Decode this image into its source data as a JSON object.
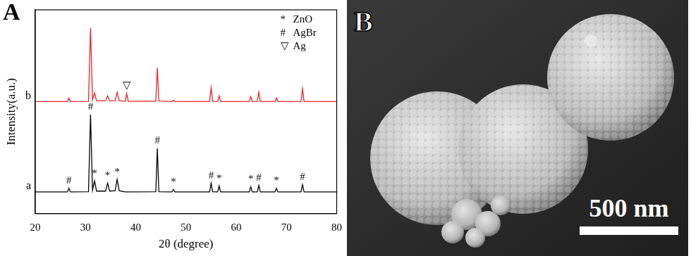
{
  "chart_data": {
    "type": "line",
    "panel_label": "A",
    "x_label": "2θ (degree)",
    "y_label": "Intensity(a.u.)",
    "x": [
      20,
      26.4,
      26.7,
      27.0,
      30.6,
      31.0,
      31.4,
      31.8,
      32.2,
      34.0,
      34.4,
      34.8,
      35.9,
      36.3,
      36.7,
      37.9,
      38.2,
      38.5,
      44.0,
      44.3,
      44.6,
      47.2,
      47.5,
      47.8,
      54.7,
      55.0,
      55.3,
      56.3,
      56.6,
      56.9,
      62.6,
      62.9,
      63.2,
      64.2,
      64.5,
      64.8,
      67.7,
      68.0,
      68.3,
      72.9,
      73.2,
      73.5,
      80
    ],
    "series": [
      {
        "name": "a",
        "color": "#000000",
        "values": [
          10.6,
          10.6,
          12.4,
          10.6,
          10.7,
          48.6,
          11.5,
          16.0,
          11.0,
          11.0,
          14.9,
          11.0,
          11.2,
          16.7,
          11.2,
          10.6,
          10.6,
          10.6,
          10.7,
          32.0,
          10.7,
          10.6,
          11.7,
          10.6,
          10.6,
          14.9,
          10.7,
          10.6,
          13.5,
          10.6,
          10.6,
          13.1,
          10.6,
          10.6,
          13.8,
          10.6,
          10.6,
          12.4,
          10.6,
          10.6,
          14.2,
          10.6,
          10.6
        ]
      },
      {
        "name": "b",
        "color": "#e8232a",
        "values": [
          55,
          55,
          56.7,
          55,
          55.1,
          91,
          55.8,
          59.2,
          55.3,
          55.3,
          57.8,
          55.3,
          55.4,
          59.6,
          55.4,
          55.1,
          58.9,
          55.1,
          55.2,
          71.6,
          55.2,
          55,
          55.7,
          55,
          55,
          61.7,
          55.1,
          55,
          57.8,
          55,
          55,
          57.4,
          55,
          55,
          59.6,
          55,
          55,
          56.7,
          55,
          55,
          61.3,
          55,
          55
        ]
      }
    ],
    "xlim": [
      20,
      80
    ],
    "xticks": [
      20,
      30,
      40,
      50,
      60,
      70,
      80
    ],
    "ylim": [
      0,
      100
    ],
    "grid": false,
    "tick_labels": "x",
    "annotations": [
      {
        "series": "a",
        "x": 26.7,
        "text": "#"
      },
      {
        "series": "a",
        "x": 31.0,
        "text": "#"
      },
      {
        "series": "a",
        "x": 31.8,
        "text": "*"
      },
      {
        "series": "a",
        "x": 34.4,
        "text": "*"
      },
      {
        "series": "a",
        "x": 36.3,
        "text": "*"
      },
      {
        "series": "a",
        "x": 44.3,
        "text": "#"
      },
      {
        "series": "a",
        "x": 47.5,
        "text": "*"
      },
      {
        "series": "a",
        "x": 55.0,
        "text": "#"
      },
      {
        "series": "a",
        "x": 56.6,
        "text": "*"
      },
      {
        "series": "a",
        "x": 62.9,
        "text": "*"
      },
      {
        "series": "a",
        "x": 64.5,
        "text": "#"
      },
      {
        "series": "a",
        "x": 68.0,
        "text": "*"
      },
      {
        "series": "a",
        "x": 73.2,
        "text": "#"
      },
      {
        "series": "b",
        "x": 38.2,
        "text": "▽"
      }
    ],
    "key": [
      {
        "symbol": "*",
        "label": "ZnO"
      },
      {
        "symbol": "#",
        "label": "AgBr"
      },
      {
        "symbol": "▽",
        "label": "Ag"
      }
    ]
  },
  "image": {
    "panel_label": "B",
    "scale_bar_text": "500 nm"
  }
}
